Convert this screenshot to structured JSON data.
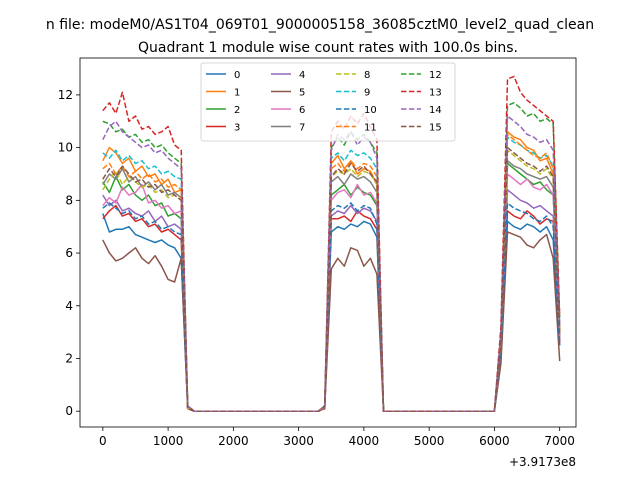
{
  "figure": {
    "suptitle": "n file: modeM0/AS1T04_069T01_9000005158_36085cztM0_level2_quad_clean",
    "title": "Quadrant 1 module wise count rates with 100.0s bins.",
    "offset_label": "+3.9173e8"
  },
  "chart_data": {
    "type": "line",
    "title": "Quadrant 1 module wise count rates with 100.0s bins.",
    "xlabel": "",
    "ylabel": "",
    "x_offset": "+3.9173e8",
    "xlim": [
      -350,
      7250
    ],
    "ylim": [
      -0.6,
      13.4
    ],
    "xticks": [
      0,
      1000,
      2000,
      3000,
      4000,
      5000,
      6000,
      7000
    ],
    "yticks": [
      0,
      2,
      4,
      6,
      8,
      10,
      12
    ],
    "grid": false,
    "legend": {
      "placement": "top-center",
      "ncol": 4
    },
    "x": [
      0,
      100,
      200,
      300,
      400,
      500,
      600,
      700,
      800,
      900,
      1000,
      1100,
      1200,
      1300,
      1400,
      1500,
      1600,
      1700,
      1800,
      1900,
      2000,
      2100,
      2200,
      2300,
      2400,
      2500,
      2600,
      2700,
      2800,
      2900,
      3000,
      3100,
      3200,
      3300,
      3400,
      3500,
      3600,
      3700,
      3800,
      3900,
      4000,
      4100,
      4200,
      4300,
      4400,
      4500,
      4600,
      4700,
      4800,
      4900,
      5000,
      5100,
      5200,
      5300,
      5400,
      5500,
      5600,
      5700,
      5800,
      5900,
      6000,
      6100,
      6200,
      6300,
      6400,
      6500,
      6600,
      6700,
      6800,
      6900,
      7000
    ],
    "series": [
      {
        "name": "0",
        "color": "#1f77b4",
        "dash": false,
        "values": [
          7.5,
          6.8,
          6.9,
          6.9,
          7.0,
          6.7,
          6.6,
          6.5,
          6.4,
          6.5,
          6.3,
          6.2,
          5.8,
          0.1,
          0,
          0,
          0,
          0,
          0,
          0,
          0,
          0,
          0,
          0,
          0,
          0,
          0,
          0,
          0,
          0,
          0,
          0,
          0,
          0,
          0.1,
          6.8,
          7.0,
          6.9,
          7.1,
          7.0,
          7.2,
          7.1,
          6.6,
          0,
          0,
          0,
          0,
          0,
          0,
          0,
          0,
          0,
          0,
          0,
          0,
          0,
          0,
          0,
          0,
          0,
          0,
          2.0,
          7.2,
          7.0,
          6.9,
          7.1,
          7.0,
          6.8,
          7.0,
          6.5,
          2.5
        ]
      },
      {
        "name": "1",
        "color": "#ff7f0e",
        "dash": false,
        "values": [
          9.5,
          10.0,
          9.8,
          9.4,
          9.6,
          9.1,
          9.3,
          8.9,
          9.0,
          8.6,
          8.8,
          8.3,
          8.4,
          0.2,
          0,
          0,
          0,
          0,
          0,
          0,
          0,
          0,
          0,
          0,
          0,
          0,
          0,
          0,
          0,
          0,
          0,
          0,
          0,
          0,
          0.2,
          9.4,
          9.7,
          9.2,
          9.5,
          9.0,
          9.2,
          9.1,
          8.6,
          0,
          0,
          0,
          0,
          0,
          0,
          0,
          0,
          0,
          0,
          0,
          0,
          0,
          0,
          0,
          0,
          0,
          0,
          2.8,
          10.6,
          10.4,
          10.3,
          10.0,
          9.9,
          9.5,
          9.6,
          9.0,
          3.1
        ]
      },
      {
        "name": "2",
        "color": "#2ca02c",
        "dash": false,
        "values": [
          8.7,
          8.3,
          8.9,
          8.4,
          8.6,
          8.2,
          8.0,
          8.2,
          7.8,
          7.9,
          7.4,
          7.5,
          7.3,
          0.1,
          0,
          0,
          0,
          0,
          0,
          0,
          0,
          0,
          0,
          0,
          0,
          0,
          0,
          0,
          0,
          0,
          0,
          0,
          0,
          0,
          0.1,
          8.2,
          8.4,
          8.6,
          8.2,
          8.5,
          8.3,
          8.2,
          7.8,
          0,
          0,
          0,
          0,
          0,
          0,
          0,
          0,
          0,
          0,
          0,
          0,
          0,
          0,
          0,
          0,
          0,
          0,
          2.4,
          9.4,
          9.2,
          9.0,
          8.8,
          8.6,
          8.7,
          8.4,
          8.2,
          2.8
        ]
      },
      {
        "name": "3",
        "color": "#d62728",
        "dash": false,
        "values": [
          7.3,
          7.6,
          7.8,
          7.4,
          7.5,
          7.2,
          7.3,
          7.0,
          7.1,
          6.8,
          6.9,
          6.7,
          6.5,
          0.1,
          0,
          0,
          0,
          0,
          0,
          0,
          0,
          0,
          0,
          0,
          0,
          0,
          0,
          0,
          0,
          0,
          0,
          0,
          0,
          0,
          0.1,
          7.3,
          7.3,
          7.4,
          7.2,
          7.6,
          7.4,
          7.3,
          6.9,
          0,
          0,
          0,
          0,
          0,
          0,
          0,
          0,
          0,
          0,
          0,
          0,
          0,
          0,
          0,
          0,
          0,
          0,
          2.2,
          7.6,
          7.4,
          7.3,
          7.6,
          7.4,
          7.1,
          7.3,
          7.2,
          2.6
        ]
      },
      {
        "name": "4",
        "color": "#9467bd",
        "dash": false,
        "values": [
          8.2,
          7.8,
          8.0,
          7.6,
          7.7,
          7.5,
          7.4,
          7.6,
          7.2,
          7.4,
          7.0,
          7.1,
          6.9,
          0.1,
          0,
          0,
          0,
          0,
          0,
          0,
          0,
          0,
          0,
          0,
          0,
          0,
          0,
          0,
          0,
          0,
          0,
          0,
          0,
          0,
          0.1,
          7.4,
          7.6,
          7.5,
          7.8,
          7.5,
          7.7,
          7.6,
          7.2,
          0,
          0,
          0,
          0,
          0,
          0,
          0,
          0,
          0,
          0,
          0,
          0,
          0,
          0,
          0,
          0,
          0,
          0,
          2.3,
          8.4,
          8.2,
          8.0,
          7.9,
          7.7,
          7.8,
          7.6,
          7.4,
          2.7
        ]
      },
      {
        "name": "5",
        "color": "#8c564b",
        "dash": false,
        "values": [
          6.5,
          6.0,
          5.7,
          5.8,
          6.0,
          6.2,
          5.8,
          5.6,
          5.9,
          5.5,
          5.0,
          4.9,
          5.8,
          0.1,
          0,
          0,
          0,
          0,
          0,
          0,
          0,
          0,
          0,
          0,
          0,
          0,
          0,
          0,
          0,
          0,
          0,
          0,
          0,
          0,
          0.1,
          5.4,
          5.8,
          5.5,
          6.2,
          6.1,
          5.5,
          5.8,
          5.2,
          0,
          0,
          0,
          0,
          0,
          0,
          0,
          0,
          0,
          0,
          0,
          0,
          0,
          0,
          0,
          0,
          0,
          0,
          1.8,
          6.8,
          6.7,
          6.6,
          6.3,
          6.2,
          6.5,
          6.7,
          5.8,
          1.9
        ]
      },
      {
        "name": "6",
        "color": "#e377c2",
        "dash": false,
        "values": [
          7.8,
          8.1,
          7.9,
          8.5,
          8.2,
          8.3,
          8.6,
          7.9,
          8.0,
          7.7,
          7.8,
          7.5,
          7.6,
          0.1,
          0,
          0,
          0,
          0,
          0,
          0,
          0,
          0,
          0,
          0,
          0,
          0,
          0,
          0,
          0,
          0,
          0,
          0,
          0,
          0,
          0.1,
          8.0,
          8.3,
          8.4,
          8.1,
          8.6,
          8.2,
          8.3,
          7.9,
          0,
          0,
          0,
          0,
          0,
          0,
          0,
          0,
          0,
          0,
          0,
          0,
          0,
          0,
          0,
          0,
          0,
          0,
          2.4,
          9.0,
          8.8,
          8.6,
          8.8,
          8.5,
          8.4,
          8.6,
          8.2,
          2.8
        ]
      },
      {
        "name": "7",
        "color": "#7f7f7f",
        "dash": false,
        "values": [
          8.6,
          9.0,
          8.8,
          9.2,
          8.7,
          8.9,
          8.5,
          8.7,
          8.4,
          8.6,
          8.2,
          8.3,
          8.1,
          0.1,
          0,
          0,
          0,
          0,
          0,
          0,
          0,
          0,
          0,
          0,
          0,
          0,
          0,
          0,
          0,
          0,
          0,
          0,
          0,
          0,
          0.1,
          8.7,
          8.9,
          8.6,
          9.0,
          8.8,
          8.9,
          8.7,
          8.3,
          0,
          0,
          0,
          0,
          0,
          0,
          0,
          0,
          0,
          0,
          0,
          0,
          0,
          0,
          0,
          0,
          0,
          0,
          2.5,
          9.5,
          9.3,
          9.2,
          9.0,
          8.9,
          8.8,
          8.9,
          8.5,
          2.9
        ]
      },
      {
        "name": "8",
        "color": "#bcbd22",
        "dash": true,
        "values": [
          8.4,
          8.8,
          9.1,
          8.6,
          8.9,
          8.7,
          8.5,
          8.6,
          8.3,
          8.4,
          8.1,
          8.2,
          8.0,
          0.1,
          0,
          0,
          0,
          0,
          0,
          0,
          0,
          0,
          0,
          0,
          0,
          0,
          0,
          0,
          0,
          0,
          0,
          0,
          0,
          0,
          0.1,
          8.9,
          9.1,
          9.0,
          9.2,
          8.9,
          9.1,
          9.0,
          8.6,
          0,
          0,
          0,
          0,
          0,
          0,
          0,
          0,
          0,
          0,
          0,
          0,
          0,
          0,
          0,
          0,
          0,
          0,
          2.6,
          9.9,
          9.7,
          9.5,
          9.3,
          9.2,
          9.0,
          9.2,
          8.8,
          3.0
        ]
      },
      {
        "name": "9",
        "color": "#17becf",
        "dash": true,
        "values": [
          9.8,
          9.6,
          9.9,
          9.5,
          9.7,
          9.4,
          9.5,
          9.2,
          9.3,
          9.0,
          9.1,
          8.9,
          8.8,
          0.2,
          0,
          0,
          0,
          0,
          0,
          0,
          0,
          0,
          0,
          0,
          0,
          0,
          0,
          0,
          0,
          0,
          0,
          0,
          0,
          0,
          0.2,
          9.6,
          9.8,
          9.5,
          9.9,
          9.7,
          9.8,
          9.6,
          9.2,
          0,
          0,
          0,
          0,
          0,
          0,
          0,
          0,
          0,
          0,
          0,
          0,
          0,
          0,
          0,
          0,
          0,
          0,
          2.8,
          10.4,
          10.2,
          10.1,
          9.9,
          9.8,
          9.6,
          9.7,
          9.3,
          3.2
        ]
      },
      {
        "name": "10",
        "color": "#1f77b4",
        "dash": true,
        "values": [
          7.7,
          7.9,
          7.7,
          7.5,
          7.6,
          7.3,
          7.4,
          7.1,
          7.2,
          6.9,
          7.0,
          6.8,
          6.7,
          0.1,
          0,
          0,
          0,
          0,
          0,
          0,
          0,
          0,
          0,
          0,
          0,
          0,
          0,
          0,
          0,
          0,
          0,
          0,
          0,
          0,
          0.1,
          7.6,
          7.8,
          7.7,
          7.9,
          7.6,
          7.8,
          7.7,
          7.1,
          0,
          0,
          0,
          0,
          0,
          0,
          0,
          0,
          0,
          0,
          0,
          0,
          0,
          0,
          0,
          0,
          0,
          0,
          2.3,
          7.9,
          7.7,
          7.6,
          7.5,
          7.3,
          7.2,
          7.4,
          7.0,
          2.5
        ]
      },
      {
        "name": "11",
        "color": "#ff7f0e",
        "dash": true,
        "values": [
          9.2,
          9.4,
          9.0,
          9.3,
          8.9,
          9.1,
          8.8,
          9.0,
          8.7,
          8.8,
          8.5,
          8.6,
          8.4,
          0.1,
          0,
          0,
          0,
          0,
          0,
          0,
          0,
          0,
          0,
          0,
          0,
          0,
          0,
          0,
          0,
          0,
          0,
          0,
          0,
          0,
          0.1,
          9.2,
          9.4,
          9.1,
          9.5,
          9.2,
          9.4,
          9.3,
          8.9,
          0,
          0,
          0,
          0,
          0,
          0,
          0,
          0,
          0,
          0,
          0,
          0,
          0,
          0,
          0,
          0,
          0,
          0,
          2.7,
          10.5,
          10.3,
          10.1,
          9.9,
          9.7,
          9.6,
          9.8,
          9.2,
          3.1
        ]
      },
      {
        "name": "12",
        "color": "#2ca02c",
        "dash": true,
        "values": [
          11.0,
          10.9,
          10.6,
          10.7,
          10.4,
          10.5,
          10.2,
          10.3,
          10.0,
          10.1,
          9.8,
          9.6,
          9.4,
          0.2,
          0,
          0,
          0,
          0,
          0,
          0,
          0,
          0,
          0,
          0,
          0,
          0,
          0,
          0,
          0,
          0,
          0,
          0,
          0,
          0,
          0.2,
          10.0,
          10.4,
          10.1,
          10.6,
          10.3,
          10.5,
          10.2,
          9.8,
          0,
          0,
          0,
          0,
          0,
          0,
          0,
          0,
          0,
          0,
          0,
          0,
          0,
          0,
          0,
          0,
          0,
          0,
          3.0,
          11.6,
          11.7,
          11.5,
          11.2,
          11.3,
          11.0,
          11.1,
          10.9,
          3.5
        ]
      },
      {
        "name": "13",
        "color": "#d62728",
        "dash": true,
        "values": [
          11.4,
          11.7,
          11.3,
          12.1,
          11.0,
          11.2,
          10.7,
          10.8,
          10.5,
          10.6,
          10.8,
          10.1,
          9.9,
          0.2,
          0,
          0,
          0,
          0,
          0,
          0,
          0,
          0,
          0,
          0,
          0,
          0,
          0,
          0,
          0,
          0,
          0,
          0,
          0,
          0,
          0.2,
          10.6,
          11.0,
          10.7,
          11.2,
          10.9,
          11.3,
          10.8,
          10.3,
          0,
          0,
          0,
          0,
          0,
          0,
          0,
          0,
          0,
          0,
          0,
          0,
          0,
          0,
          0,
          0,
          0,
          0,
          3.2,
          12.6,
          12.7,
          12.1,
          11.8,
          11.6,
          11.4,
          11.2,
          11.0,
          3.6
        ]
      },
      {
        "name": "14",
        "color": "#9467bd",
        "dash": true,
        "values": [
          10.3,
          10.8,
          11.0,
          10.6,
          10.4,
          10.2,
          10.0,
          10.1,
          9.8,
          9.9,
          9.6,
          9.4,
          9.2,
          0.2,
          0,
          0,
          0,
          0,
          0,
          0,
          0,
          0,
          0,
          0,
          0,
          0,
          0,
          0,
          0,
          0,
          0,
          0,
          0,
          0,
          0.2,
          9.9,
          10.5,
          10.3,
          10.6,
          10.1,
          10.4,
          10.2,
          9.6,
          0,
          0,
          0,
          0,
          0,
          0,
          0,
          0,
          0,
          0,
          0,
          0,
          0,
          0,
          0,
          0,
          0,
          0,
          2.9,
          11.2,
          11.0,
          10.8,
          10.5,
          10.4,
          10.2,
          10.3,
          9.9,
          3.3
        ]
      },
      {
        "name": "15",
        "color": "#8c564b",
        "dash": true,
        "values": [
          8.8,
          9.2,
          8.9,
          9.3,
          9.0,
          8.7,
          8.8,
          8.5,
          8.6,
          8.3,
          8.4,
          8.2,
          8.0,
          0.1,
          0,
          0,
          0,
          0,
          0,
          0,
          0,
          0,
          0,
          0,
          0,
          0,
          0,
          0,
          0,
          0,
          0,
          0,
          0,
          0,
          0.1,
          8.9,
          9.2,
          9.0,
          9.4,
          9.1,
          9.3,
          9.0,
          8.7,
          0,
          0,
          0,
          0,
          0,
          0,
          0,
          0,
          0,
          0,
          0,
          0,
          0,
          0,
          0,
          0,
          0,
          0,
          2.6,
          10.0,
          9.8,
          9.6,
          9.4,
          9.3,
          9.1,
          9.3,
          8.9,
          3.0
        ]
      }
    ]
  }
}
